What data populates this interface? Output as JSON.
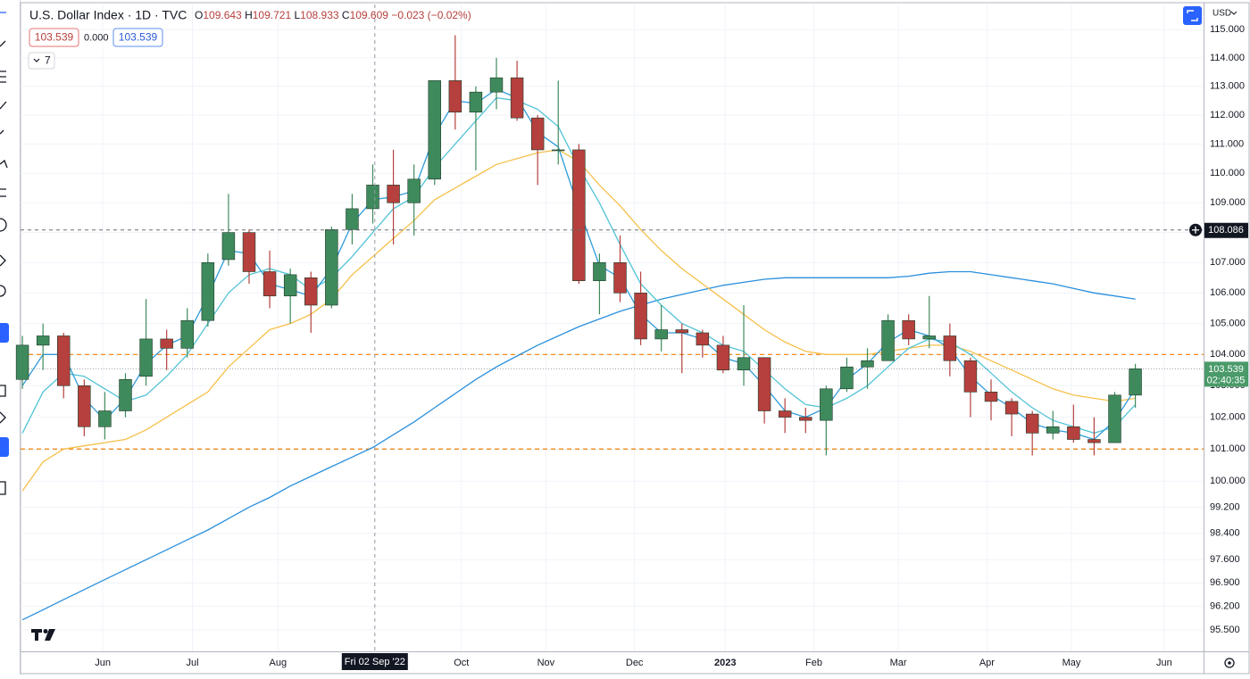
{
  "header": {
    "title": "U.S. Dollar Index · 1D · TVC",
    "ohlc": [
      "O",
      "109.643",
      "H",
      "109.721",
      "L",
      "108.933",
      "C",
      "109.609",
      "−0.023 (−0.02%)"
    ],
    "indicator_values": [
      "103.539",
      "0.000",
      "103.539"
    ],
    "collapsed_count": "7",
    "currency": "USD",
    "countdown": "02:40:35"
  },
  "chart_data": {
    "type": "candlestick",
    "categories": [
      null,
      null,
      null,
      null,
      null,
      null,
      null,
      null,
      null,
      null,
      null,
      null,
      null,
      null,
      null,
      null,
      null,
      null,
      null,
      null,
      null,
      null,
      null,
      null,
      null,
      null,
      null,
      null,
      null,
      null,
      null,
      null,
      null,
      null,
      null,
      null,
      null,
      null,
      null,
      null,
      null,
      null,
      null,
      null,
      null,
      null,
      null,
      null,
      null,
      null,
      null,
      null,
      null,
      null,
      null
    ],
    "open": [
      103.2,
      104.3,
      104.6,
      103.0,
      101.7,
      102.2,
      103.3,
      104.5,
      104.2,
      105.1,
      107.1,
      108.0,
      106.7,
      105.9,
      106.5,
      105.6,
      108.1,
      108.8,
      109.6,
      109.0,
      109.8,
      113.2,
      112.1,
      112.8,
      113.3,
      111.9,
      110.8,
      110.8,
      106.4,
      107.0,
      106.0,
      104.5,
      104.8,
      104.7,
      104.3,
      103.5,
      103.9,
      102.2,
      102.0,
      101.9,
      102.9,
      103.6,
      103.8,
      105.1,
      104.5,
      104.6,
      103.8,
      102.8,
      102.5,
      102.1,
      101.5,
      101.7,
      101.3,
      101.2,
      102.7
    ],
    "high": [
      104.6,
      105.0,
      104.7,
      103.2,
      102.8,
      103.4,
      105.8,
      104.8,
      105.5,
      107.3,
      109.3,
      108.1,
      107.4,
      106.8,
      106.7,
      108.2,
      109.3,
      110.3,
      110.8,
      110.3,
      113.2,
      114.8,
      113.0,
      114.0,
      113.9,
      112.0,
      113.2,
      111.0,
      107.3,
      107.9,
      106.7,
      105.6,
      105.0,
      104.8,
      104.6,
      105.6,
      103.9,
      102.6,
      102.3,
      103.0,
      103.9,
      104.2,
      105.3,
      105.3,
      105.9,
      105.0,
      103.9,
      103.2,
      102.6,
      102.2,
      102.2,
      102.4,
      102.0,
      102.8,
      103.7
    ],
    "low": [
      102.9,
      103.5,
      102.6,
      101.4,
      101.3,
      102.0,
      103.0,
      103.5,
      103.9,
      104.9,
      106.9,
      106.3,
      105.5,
      105.0,
      104.7,
      105.5,
      107.6,
      108.3,
      107.6,
      107.9,
      109.6,
      111.5,
      110.1,
      112.2,
      111.8,
      109.6,
      110.3,
      106.3,
      105.3,
      105.7,
      104.3,
      104.1,
      103.4,
      103.9,
      103.4,
      103.0,
      101.8,
      101.5,
      101.5,
      100.8,
      102.8,
      102.9,
      103.8,
      104.3,
      104.2,
      103.3,
      102.0,
      101.9,
      101.4,
      100.8,
      101.3,
      101.2,
      100.8,
      101.2,
      102.3
    ],
    "close": [
      104.3,
      104.6,
      103.0,
      101.7,
      102.2,
      103.2,
      104.5,
      104.2,
      105.1,
      107.0,
      108.0,
      106.7,
      105.9,
      106.6,
      105.6,
      108.1,
      108.8,
      109.6,
      109.0,
      109.8,
      113.2,
      112.1,
      112.8,
      113.3,
      111.9,
      110.8,
      110.8,
      106.4,
      107.0,
      106.0,
      104.5,
      104.8,
      104.7,
      104.3,
      103.5,
      103.9,
      102.2,
      102.0,
      101.9,
      102.9,
      103.6,
      103.8,
      105.1,
      104.5,
      104.6,
      103.8,
      102.8,
      102.5,
      102.1,
      101.5,
      101.7,
      101.3,
      101.2,
      102.7,
      103.539
    ],
    "up_color": "#3f8a5c",
    "down_color": "#b5403d",
    "series": [
      {
        "color": "#2a8fdc",
        "values": [
          95.8,
          96.1,
          96.4,
          96.7,
          97.0,
          97.3,
          97.6,
          97.9,
          98.2,
          98.5,
          98.85,
          99.2,
          99.5,
          99.85,
          100.15,
          100.45,
          100.75,
          101.05,
          101.45,
          101.85,
          102.3,
          102.75,
          103.2,
          103.6,
          103.95,
          104.3,
          104.6,
          104.9,
          105.15,
          105.4,
          105.6,
          105.8,
          105.95,
          106.1,
          106.25,
          106.35,
          106.45,
          106.5,
          106.5,
          106.5,
          106.5,
          106.5,
          106.5,
          106.55,
          106.65,
          106.7,
          106.7,
          106.6,
          106.5,
          106.4,
          106.3,
          106.15,
          106.0,
          105.9,
          105.8
        ]
      },
      {
        "color": "#f5c04a",
        "values": [
          99.7,
          100.6,
          101.0,
          101.1,
          101.2,
          101.3,
          101.6,
          102.0,
          102.4,
          102.8,
          103.6,
          104.2,
          104.8,
          105.0,
          105.3,
          105.8,
          106.6,
          107.2,
          107.8,
          108.4,
          109.1,
          109.5,
          109.9,
          110.3,
          110.5,
          110.7,
          110.8,
          110.4,
          109.6,
          108.9,
          108.1,
          107.4,
          106.8,
          106.3,
          105.8,
          105.3,
          104.8,
          104.4,
          104.1,
          104.0,
          104.0,
          104.0,
          104.1,
          104.2,
          104.3,
          104.3,
          104.1,
          103.8,
          103.5,
          103.2,
          102.9,
          102.7,
          102.6,
          102.5,
          102.6
        ]
      },
      {
        "color": "#52c3d6",
        "values": [
          101.5,
          102.8,
          103.4,
          103.3,
          102.9,
          102.5,
          102.7,
          103.3,
          104.0,
          105.0,
          106.0,
          106.6,
          106.8,
          106.6,
          106.1,
          106.5,
          107.2,
          108.0,
          108.8,
          109.2,
          110.2,
          111.0,
          111.8,
          112.6,
          112.5,
          112.2,
          111.6,
          110.2,
          109.0,
          107.6,
          106.3,
          105.6,
          105.0,
          104.7,
          104.3,
          104.1,
          103.5,
          102.9,
          102.4,
          102.3,
          102.6,
          103.0,
          103.6,
          104.2,
          104.5,
          104.4,
          104.0,
          103.4,
          102.8,
          102.3,
          101.9,
          101.7,
          101.5,
          101.7,
          102.4
        ]
      },
      {
        "color": "#2f9bd8",
        "values": [
          103.0,
          104.0,
          104.0,
          102.6,
          101.9,
          102.6,
          103.7,
          104.3,
          104.6,
          105.9,
          107.4,
          107.3,
          106.3,
          106.1,
          105.9,
          106.8,
          108.3,
          109.1,
          109.2,
          109.4,
          111.3,
          112.5,
          112.4,
          112.9,
          112.6,
          111.4,
          110.9,
          108.8,
          106.9,
          106.5,
          105.3,
          104.7,
          104.7,
          104.5,
          103.9,
          103.7,
          103.0,
          102.2,
          102.0,
          102.3,
          103.2,
          103.7,
          104.4,
          104.8,
          104.6,
          104.2,
          103.3,
          102.7,
          102.3,
          101.8,
          101.6,
          101.5,
          101.3,
          101.9,
          102.9
        ]
      }
    ],
    "log_scale": true,
    "ylim": [
      94.87,
      115.9
    ],
    "yticks": [
      {
        "value": 115,
        "label": "115.000"
      },
      {
        "value": 114,
        "label": "114.000"
      },
      {
        "value": 113,
        "label": "113.000"
      },
      {
        "value": 112,
        "label": "112.000"
      },
      {
        "value": 111,
        "label": "111.000"
      },
      {
        "value": 110,
        "label": "110.000"
      },
      {
        "value": 109,
        "label": "109.000"
      },
      {
        "value": 108,
        "label": "108.000"
      },
      {
        "value": 107,
        "label": "107.000"
      },
      {
        "value": 106,
        "label": "106.000"
      },
      {
        "value": 105,
        "label": "105.000"
      },
      {
        "value": 104,
        "label": "104.000"
      },
      {
        "value": 103,
        "label": "103.000"
      },
      {
        "value": 102,
        "label": "102.000"
      },
      {
        "value": 101,
        "label": "101.000"
      },
      {
        "value": 100,
        "label": "100.000"
      },
      {
        "value": 99.2,
        "label": "99.200"
      },
      {
        "value": 98.4,
        "label": "98.400"
      },
      {
        "value": 97.6,
        "label": "97.600"
      },
      {
        "value": 96.9,
        "label": "96.900"
      },
      {
        "value": 96.2,
        "label": "96.200"
      },
      {
        "value": 95.5,
        "label": "95.500"
      }
    ],
    "xlim": [
      -0.09,
      57.31
    ],
    "xticks": [
      {
        "value": 3.9,
        "label": "Jun"
      },
      {
        "value": 8.25,
        "label": "Jul"
      },
      {
        "value": 12.4,
        "label": "Aug"
      },
      {
        "value": 21.3,
        "label": "Oct"
      },
      {
        "value": 25.4,
        "label": "Nov"
      },
      {
        "value": 29.7,
        "label": "Dec"
      },
      {
        "value": 34.1,
        "label": "2023"
      },
      {
        "value": 38.4,
        "label": "Feb"
      },
      {
        "value": 42.5,
        "label": "Mar"
      },
      {
        "value": 46.8,
        "label": "Apr"
      },
      {
        "value": 50.9,
        "label": "May"
      },
      {
        "value": 55.4,
        "label": "Jun"
      }
    ],
    "grid": true,
    "hlines": [
      {
        "value": 104,
        "color": "#f57c00"
      },
      {
        "value": 101,
        "color": "#f57c00"
      }
    ],
    "last_price": 103.539,
    "crosshair": {
      "x": 17.1,
      "x_label": "Fri 02 Sep '22",
      "y": 108.086
    }
  }
}
